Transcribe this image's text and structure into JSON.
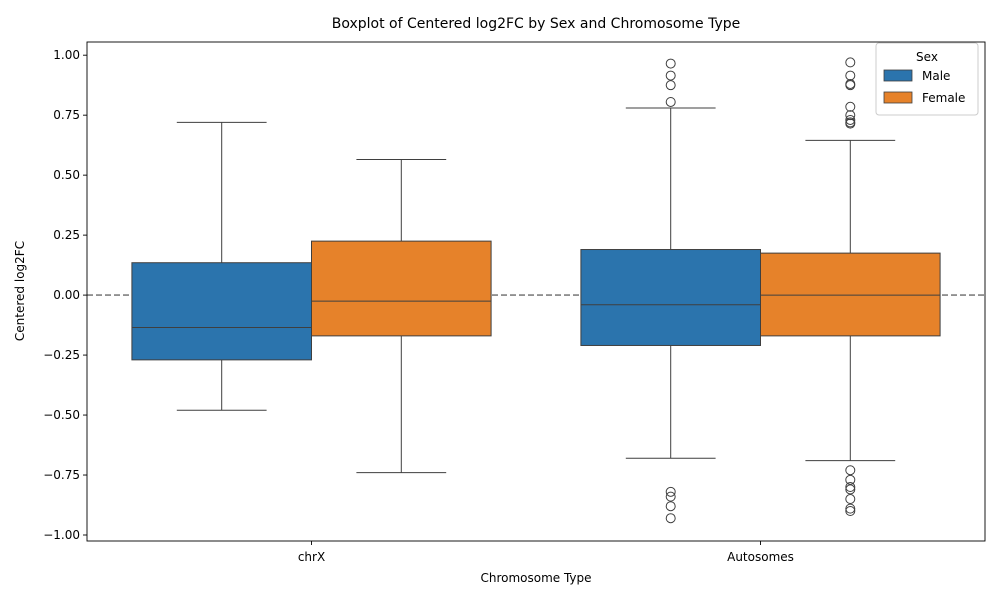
{
  "chart_data": {
    "type": "box",
    "title": "Boxplot of Centered log2FC by Sex and Chromosome Type",
    "xlabel": "Chromosome Type",
    "ylabel": "Centered log2FC",
    "ylim": [
      -1.025,
      1.055
    ],
    "yticks": [
      -1.0,
      -0.75,
      -0.5,
      -0.25,
      0.0,
      0.25,
      0.5,
      0.75,
      1.0
    ],
    "ytick_labels": [
      "−1.00",
      "−0.75",
      "−0.50",
      "−0.25",
      "0.00",
      "0.25",
      "0.50",
      "0.75",
      "1.00"
    ],
    "categories": [
      "chrX",
      "Autosomes"
    ],
    "reference_line": 0.0,
    "grid": false,
    "legend": {
      "title": "Sex",
      "placement": "top-right"
    },
    "series": [
      {
        "name": "Male",
        "color": "#2b74ad",
        "boxes": [
          {
            "q1": -0.27,
            "median": -0.135,
            "q3": 0.135,
            "whisker_low": -0.48,
            "whisker_high": 0.72,
            "outliers": []
          },
          {
            "q1": -0.21,
            "median": -0.04,
            "q3": 0.19,
            "whisker_low": -0.68,
            "whisker_high": 0.78,
            "outliers": [
              0.965,
              0.915,
              0.875,
              0.805,
              -0.82,
              -0.84,
              -0.88,
              -0.93
            ]
          }
        ]
      },
      {
        "name": "Female",
        "color": "#e6822a",
        "boxes": [
          {
            "q1": -0.17,
            "median": -0.025,
            "q3": 0.225,
            "whisker_low": -0.74,
            "whisker_high": 0.565,
            "outliers": []
          },
          {
            "q1": -0.17,
            "median": 0.0,
            "q3": 0.175,
            "whisker_low": -0.69,
            "whisker_high": 0.645,
            "outliers": [
              0.97,
              0.915,
              0.88,
              0.875,
              0.785,
              0.75,
              0.73,
              0.72,
              0.715,
              -0.73,
              -0.77,
              -0.8,
              -0.81,
              -0.85,
              -0.89,
              -0.9
            ]
          }
        ]
      }
    ]
  }
}
